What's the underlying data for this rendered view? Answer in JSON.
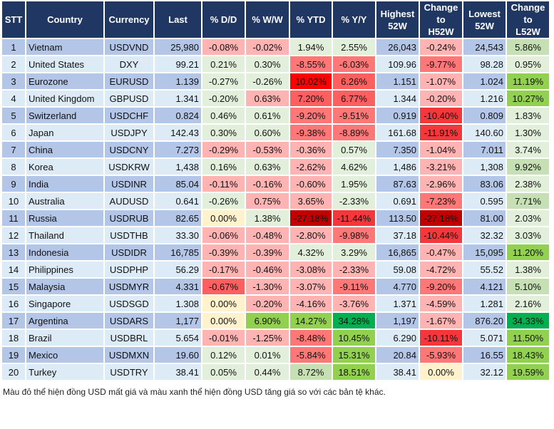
{
  "headers": [
    "STT",
    "Country",
    "Currency",
    "Last",
    "% D/D",
    "% W/W",
    "% YTD",
    "% Y/Y",
    "Highest\n52W",
    "Change\nto\nH52W",
    "Lowest\n52W",
    "Change\nto\nL52W"
  ],
  "colors": {
    "lr": "#ffb3b3",
    "mr": "#ff7777",
    "r5": "#ff5f5f",
    "r": "#ff0000",
    "rr": "#f3373a",
    "dr": "#c00000",
    "lg": "#e2efda",
    "mg": "#c6e0b4",
    "g": "#92d050",
    "dg": "#00b050",
    "y": "#fff2cc"
  },
  "rows": [
    {
      "stt": "1",
      "country": "Vietnam",
      "currency": "USDVND",
      "last": "25,980",
      "dd": "-0.08%",
      "ww": "-0.02%",
      "ytd": "1.94%",
      "yy": "2.55%",
      "high": "26,043",
      "chh": "-0.24%",
      "low": "24,543",
      "chl": "5.86%",
      "c": [
        "lr",
        "lr",
        "lg",
        "lg",
        "lr",
        "mg"
      ]
    },
    {
      "stt": "2",
      "country": "United States",
      "currency": "DXY",
      "last": "99.21",
      "dd": "0.21%",
      "ww": "0.30%",
      "ytd": "-8.55%",
      "yy": "-6.03%",
      "high": "109.96",
      "chh": "-9.77%",
      "low": "98.28",
      "chl": "0.95%",
      "c": [
        "lg",
        "lg",
        "mr",
        "mr",
        "mr",
        "lg"
      ]
    },
    {
      "stt": "3",
      "country": "Eurozone",
      "currency": "EURUSD",
      "last": "1.139",
      "dd": "-0.27%",
      "ww": "-0.26%",
      "ytd": "10.02%",
      "yy": "6.26%",
      "high": "1.151",
      "chh": "-1.07%",
      "low": "1.024",
      "chl": "11.19%",
      "c": [
        "lg",
        "lg",
        "r",
        "r5",
        "lr",
        "g"
      ]
    },
    {
      "stt": "4",
      "country": "United Kingdom",
      "currency": "GBPUSD",
      "last": "1.341",
      "dd": "-0.20%",
      "ww": "0.63%",
      "ytd": "7.20%",
      "yy": "6.77%",
      "high": "1.344",
      "chh": "-0.20%",
      "low": "1.216",
      "chl": "10.27%",
      "c": [
        "lg",
        "lr",
        "r5",
        "r5",
        "lr",
        "g"
      ]
    },
    {
      "stt": "5",
      "country": "Switzerland",
      "currency": "USDCHF",
      "last": "0.824",
      "dd": "0.46%",
      "ww": "0.61%",
      "ytd": "-9.20%",
      "yy": "-9.51%",
      "high": "0.919",
      "chh": "-10.40%",
      "low": "0.809",
      "chl": "1.83%",
      "c": [
        "lg",
        "lg",
        "mr",
        "mr",
        "rr",
        "lg"
      ]
    },
    {
      "stt": "6",
      "country": "Japan",
      "currency": "USDJPY",
      "last": "142.43",
      "dd": "0.30%",
      "ww": "0.60%",
      "ytd": "-9.38%",
      "yy": "-8.89%",
      "high": "161.68",
      "chh": "-11.91%",
      "low": "140.60",
      "chl": "1.30%",
      "c": [
        "lg",
        "lg",
        "mr",
        "mr",
        "rr",
        "lg"
      ]
    },
    {
      "stt": "7",
      "country": "China",
      "currency": "USDCNY",
      "last": "7.273",
      "dd": "-0.29%",
      "ww": "-0.53%",
      "ytd": "-0.36%",
      "yy": "0.57%",
      "high": "7.350",
      "chh": "-1.04%",
      "low": "7.011",
      "chl": "3.74%",
      "c": [
        "lr",
        "lr",
        "lr",
        "lg",
        "lr",
        "lg"
      ]
    },
    {
      "stt": "8",
      "country": "Korea",
      "currency": "USDKRW",
      "last": "1,438",
      "dd": "0.16%",
      "ww": "0.63%",
      "ytd": "-2.62%",
      "yy": "4.62%",
      "high": "1,486",
      "chh": "-3.21%",
      "low": "1,308",
      "chl": "9.92%",
      "c": [
        "lg",
        "lg",
        "lr",
        "lg",
        "lr",
        "mg"
      ]
    },
    {
      "stt": "9",
      "country": "India",
      "currency": "USDINR",
      "last": "85.04",
      "dd": "-0.11%",
      "ww": "-0.16%",
      "ytd": "-0.60%",
      "yy": "1.95%",
      "high": "87.63",
      "chh": "-2.96%",
      "low": "83.06",
      "chl": "2.38%",
      "c": [
        "lr",
        "lr",
        "lr",
        "lg",
        "lr",
        "lg"
      ]
    },
    {
      "stt": "10",
      "country": "Australia",
      "currency": "AUDUSD",
      "last": "0.641",
      "dd": "-0.26%",
      "ww": "0.75%",
      "ytd": "3.65%",
      "yy": "-2.33%",
      "high": "0.691",
      "chh": "-7.23%",
      "low": "0.595",
      "chl": "7.71%",
      "c": [
        "lg",
        "lr",
        "lr",
        "lg",
        "mr",
        "mg"
      ]
    },
    {
      "stt": "11",
      "country": "Russia",
      "currency": "USDRUB",
      "last": "82.65",
      "dd": "0.00%",
      "ww": "1.38%",
      "ytd": "-27.18%",
      "yy": "-11.44%",
      "high": "113.50",
      "chh": "-27.18%",
      "low": "81.00",
      "chl": "2.03%",
      "c": [
        "y",
        "lg",
        "dr",
        "rr",
        "dr",
        "lg"
      ]
    },
    {
      "stt": "12",
      "country": "Thailand",
      "currency": "USDTHB",
      "last": "33.30",
      "dd": "-0.06%",
      "ww": "-0.48%",
      "ytd": "-2.80%",
      "yy": "-9.98%",
      "high": "37.18",
      "chh": "-10.44%",
      "low": "32.32",
      "chl": "3.03%",
      "c": [
        "lr",
        "lr",
        "lr",
        "mr",
        "rr",
        "lg"
      ]
    },
    {
      "stt": "13",
      "country": "Indonesia",
      "currency": "USDIDR",
      "last": "16,785",
      "dd": "-0.39%",
      "ww": "-0.39%",
      "ytd": "4.32%",
      "yy": "3.29%",
      "high": "16,865",
      "chh": "-0.47%",
      "low": "15,095",
      "chl": "11.20%",
      "c": [
        "lr",
        "lr",
        "lg",
        "lg",
        "lr",
        "g"
      ]
    },
    {
      "stt": "14",
      "country": "Philippines",
      "currency": "USDPHP",
      "last": "56.29",
      "dd": "-0.17%",
      "ww": "-0.46%",
      "ytd": "-3.08%",
      "yy": "-2.33%",
      "high": "59.08",
      "chh": "-4.72%",
      "low": "55.52",
      "chl": "1.38%",
      "c": [
        "lr",
        "lr",
        "lr",
        "lr",
        "lr",
        "lg"
      ]
    },
    {
      "stt": "15",
      "country": "Malaysia",
      "currency": "USDMYR",
      "last": "4.331",
      "dd": "-0.67%",
      "ww": "-1.30%",
      "ytd": "-3.07%",
      "yy": "-9.11%",
      "high": "4.770",
      "chh": "-9.20%",
      "low": "4.121",
      "chl": "5.10%",
      "c": [
        "r5",
        "lr",
        "lr",
        "mr",
        "mr",
        "mg"
      ]
    },
    {
      "stt": "16",
      "country": "Singapore",
      "currency": "USDSGD",
      "last": "1.308",
      "dd": "0.00%",
      "ww": "-0.20%",
      "ytd": "-4.16%",
      "yy": "-3.76%",
      "high": "1.371",
      "chh": "-4.59%",
      "low": "1.281",
      "chl": "2.16%",
      "c": [
        "y",
        "lr",
        "lr",
        "lr",
        "lr",
        "lg"
      ]
    },
    {
      "stt": "17",
      "country": "Argentina",
      "currency": "USDARS",
      "last": "1,177",
      "dd": "0.00%",
      "ww": "6.90%",
      "ytd": "14.27%",
      "yy": "34.28%",
      "high": "1,197",
      "chh": "-1.67%",
      "low": "876.20",
      "chl": "34.33%",
      "c": [
        "y",
        "g",
        "g",
        "dg",
        "lr",
        "dg"
      ]
    },
    {
      "stt": "18",
      "country": "Brazil",
      "currency": "USDBRL",
      "last": "5.654",
      "dd": "-0.01%",
      "ww": "-1.25%",
      "ytd": "-8.48%",
      "yy": "10.45%",
      "high": "6.290",
      "chh": "-10.11%",
      "low": "5.071",
      "chl": "11.50%",
      "c": [
        "lr",
        "lr",
        "mr",
        "g",
        "rr",
        "g"
      ]
    },
    {
      "stt": "19",
      "country": "Mexico",
      "currency": "USDMXN",
      "last": "19.60",
      "dd": "0.12%",
      "ww": "0.01%",
      "ytd": "-5.84%",
      "yy": "15.31%",
      "high": "20.84",
      "chh": "-5.93%",
      "low": "16.55",
      "chl": "18.43%",
      "c": [
        "lg",
        "lg",
        "mr",
        "g",
        "mr",
        "g"
      ]
    },
    {
      "stt": "20",
      "country": "Turkey",
      "currency": "USDTRY",
      "last": "38.41",
      "dd": "0.05%",
      "ww": "0.44%",
      "ytd": "8.72%",
      "yy": "18.51%",
      "high": "38.41",
      "chh": "0.00%",
      "low": "32.12",
      "chl": "19.59%",
      "c": [
        "lg",
        "lg",
        "mg",
        "g",
        "y",
        "g"
      ]
    }
  ],
  "note": "Màu đỏ thể hiện đồng USD mất giá và màu xanh thể hiện đồng USD tăng giá so với các bản tệ khác."
}
